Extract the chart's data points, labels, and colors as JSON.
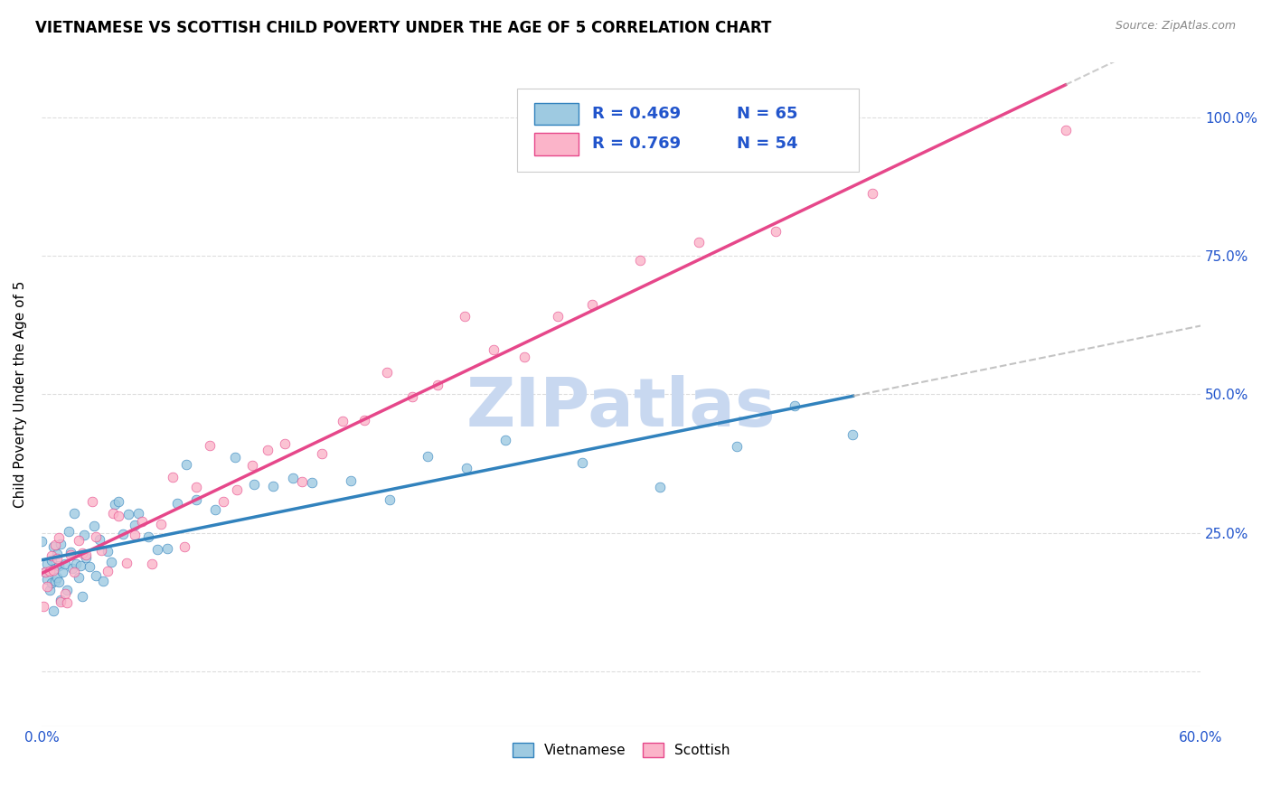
{
  "title": "VIETNAMESE VS SCOTTISH CHILD POVERTY UNDER THE AGE OF 5 CORRELATION CHART",
  "source": "Source: ZipAtlas.com",
  "ylabel": "Child Poverty Under the Age of 5",
  "xlim": [
    0.0,
    0.6
  ],
  "ylim": [
    -0.1,
    1.1
  ],
  "color_vietnamese": "#9ecae1",
  "color_scottish": "#fbb4c9",
  "color_line_vietnamese": "#3182bd",
  "color_line_scottish": "#e6478a",
  "watermark": "ZIPatlas",
  "watermark_color": "#c8d8f0",
  "background_color": "#ffffff",
  "grid_color": "#dddddd",
  "legend_r1_label": "R = 0.469",
  "legend_n1_label": "N = 65",
  "legend_r2_label": "R = 0.769",
  "legend_n2_label": "N = 54",
  "title_fontsize": 12,
  "axis_label_fontsize": 11,
  "tick_fontsize": 11,
  "legend_fontsize": 13
}
